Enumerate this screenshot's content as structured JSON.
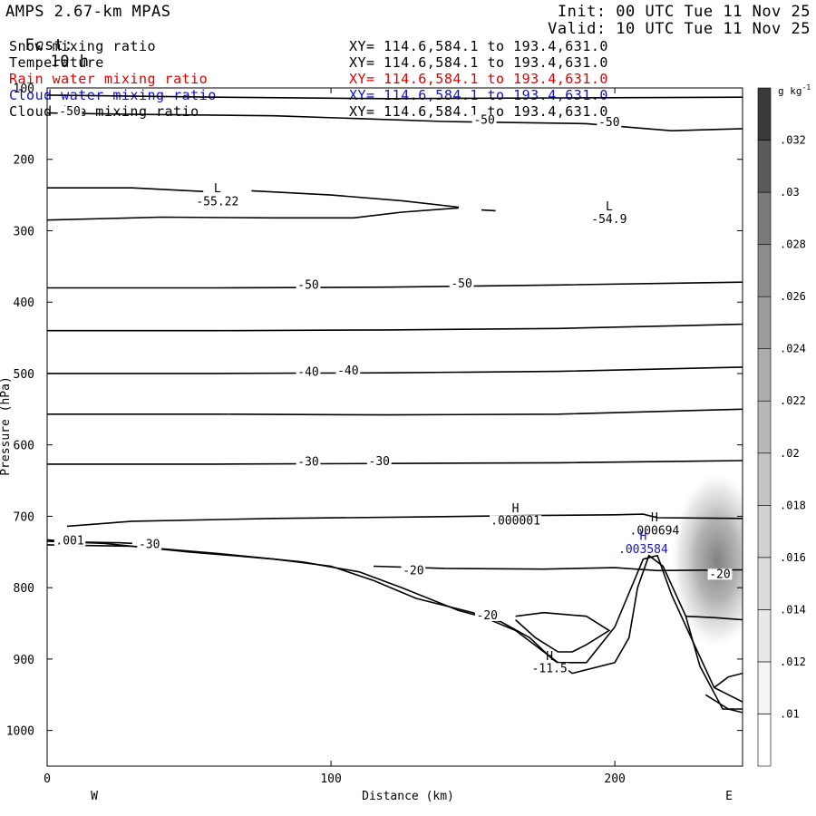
{
  "header": {
    "title": "AMPS 2.67-km MPAS",
    "forecast_label": "Fcst:",
    "forecast_value": "10 h",
    "init": "Init: 00 UTC Tue 11 Nov 25",
    "valid": "Valid: 10 UTC Tue 11 Nov 25"
  },
  "fields": [
    {
      "name": "Snow mixing ratio",
      "xy": "XY= 114.6,584.1 to 193.4,631.0",
      "color": "#000000"
    },
    {
      "name": "Temperature",
      "xy": "XY= 114.6,584.1 to 193.4,631.0",
      "color": "#000000"
    },
    {
      "name": "Rain water mixing ratio",
      "xy": "XY= 114.6,584.1 to 193.4,631.0",
      "color": "#e00000"
    },
    {
      "name": "Cloud water mixing ratio",
      "xy": "XY= 114.6,584.1 to 193.4,631.0",
      "color": "#1010d0"
    },
    {
      "name": "Cloud ice mixing ratio",
      "xy": "XY= 114.6,584.1 to 193.4,631.0",
      "color": "#000000"
    }
  ],
  "chart_data": {
    "type": "cross-section contour",
    "xlabel": "Distance (km)",
    "ylabel": "Pressure (hPa)",
    "xlim": [
      0,
      245
    ],
    "ylim": [
      1050,
      100
    ],
    "x_ticks": [
      0,
      100,
      200
    ],
    "y_ticks": [
      100,
      200,
      300,
      400,
      500,
      600,
      700,
      800,
      900,
      1000
    ],
    "x_end_labels": {
      "left": "W",
      "right": "E"
    },
    "colorbar": {
      "unit_base": "g kg",
      "unit_exp": "-1",
      "levels": [
        ".01",
        ".012",
        ".014",
        ".016",
        ".018",
        ".02",
        ".022",
        ".024",
        ".026",
        ".028",
        ".03",
        ".032"
      ],
      "shades": [
        "#ffffff",
        "#f4f4f4",
        "#e8e8e8",
        "#dcdcdc",
        "#d0d0d0",
        "#c4c4c4",
        "#b8b8b8",
        "#acacac",
        "#9c9c9c",
        "#8c8c8c",
        "#7a7a7a",
        "#5a5a5a",
        "#3a3a3a"
      ]
    },
    "contour_labels": [
      {
        "text": "-50",
        "x": 8,
        "p": 137,
        "color": "#000000"
      },
      {
        "text": "-50",
        "x": 154,
        "p": 149,
        "color": "#000000"
      },
      {
        "text": "-50",
        "x": 198,
        "p": 152,
        "color": "#000000"
      },
      {
        "text": "L",
        "x": 60,
        "p": 245,
        "color": "#000000"
      },
      {
        "text": "-55.22",
        "x": 60,
        "p": 263,
        "color": "#000000"
      },
      {
        "text": "L",
        "x": 198,
        "p": 270,
        "color": "#000000"
      },
      {
        "text": "-54.9",
        "x": 198,
        "p": 288,
        "color": "#000000"
      },
      {
        "text": "-50",
        "x": 92,
        "p": 380,
        "color": "#000000"
      },
      {
        "text": "-50",
        "x": 146,
        "p": 378,
        "color": "#000000"
      },
      {
        "text": "-40",
        "x": 92,
        "p": 502,
        "color": "#000000"
      },
      {
        "text": "-40",
        "x": 106,
        "p": 500,
        "color": "#000000"
      },
      {
        "text": "-30",
        "x": 92,
        "p": 628,
        "color": "#000000"
      },
      {
        "text": "-30",
        "x": 117,
        "p": 627,
        "color": "#000000"
      },
      {
        "text": "H",
        "x": 165,
        "p": 693,
        "color": "#000000"
      },
      {
        "text": ".000001",
        "x": 165,
        "p": 710,
        "color": "#000000"
      },
      {
        "text": "H",
        "x": 214,
        "p": 706,
        "color": "#000000"
      },
      {
        "text": ".000694",
        "x": 214,
        "p": 724,
        "color": "#000000"
      },
      {
        "text": "H",
        "x": 210,
        "p": 732,
        "color": "#1010d0"
      },
      {
        "text": ".003584",
        "x": 210,
        "p": 750,
        "color": "#1010d0"
      },
      {
        "text": ".001",
        "x": 8,
        "p": 738,
        "color": "#000000"
      },
      {
        "text": "-30",
        "x": 36,
        "p": 743,
        "color": "#000000"
      },
      {
        "text": "-20",
        "x": 129,
        "p": 780,
        "color": "#000000"
      },
      {
        "text": "-20",
        "x": 237,
        "p": 785,
        "color": "#000000"
      },
      {
        "text": "-20",
        "x": 155,
        "p": 843,
        "color": "#000000"
      },
      {
        "text": "H",
        "x": 177,
        "p": 900,
        "color": "#000000"
      },
      {
        "text": "-11.5",
        "x": 177,
        "p": 917,
        "color": "#000000"
      }
    ],
    "isotherms": [
      [
        [
          0,
          135
        ],
        [
          30,
          137
        ],
        [
          80,
          139
        ],
        [
          140,
          147
        ],
        [
          190,
          150
        ],
        [
          220,
          160
        ],
        [
          245,
          157
        ]
      ],
      [
        [
          0,
          110
        ],
        [
          60,
          113
        ],
        [
          120,
          115
        ],
        [
          180,
          114
        ],
        [
          245,
          113
        ]
      ],
      [
        [
          0,
          240
        ],
        [
          30,
          240
        ],
        [
          55,
          245
        ]
      ],
      [
        [
          72,
          244
        ],
        [
          100,
          250
        ],
        [
          125,
          258
        ],
        [
          145,
          267
        ]
      ],
      [
        [
          0,
          285
        ],
        [
          40,
          281
        ],
        [
          80,
          282
        ],
        [
          108,
          282
        ],
        [
          125,
          274
        ],
        [
          145,
          268
        ]
      ],
      [
        [
          153,
          271
        ],
        [
          158,
          272
        ]
      ],
      [
        [
          0,
          380
        ],
        [
          60,
          380
        ],
        [
          120,
          379
        ],
        [
          180,
          376
        ],
        [
          245,
          372
        ]
      ],
      [
        [
          0,
          440
        ],
        [
          60,
          440
        ],
        [
          120,
          439
        ],
        [
          180,
          437
        ],
        [
          245,
          431
        ]
      ],
      [
        [
          0,
          500
        ],
        [
          60,
          500
        ],
        [
          120,
          499
        ],
        [
          180,
          497
        ],
        [
          245,
          491
        ]
      ],
      [
        [
          0,
          557
        ],
        [
          60,
          557
        ],
        [
          120,
          558
        ],
        [
          180,
          557
        ],
        [
          245,
          550
        ]
      ],
      [
        [
          0,
          627
        ],
        [
          60,
          627
        ],
        [
          120,
          626
        ],
        [
          180,
          625
        ],
        [
          245,
          622
        ]
      ],
      [
        [
          7,
          714
        ],
        [
          30,
          707
        ],
        [
          80,
          703
        ],
        [
          130,
          701
        ],
        [
          170,
          699
        ],
        [
          200,
          698
        ],
        [
          210,
          697
        ],
        [
          215,
          702
        ],
        [
          245,
          703
        ]
      ],
      [
        [
          0,
          735
        ],
        [
          20,
          738
        ],
        [
          50,
          750
        ],
        [
          80,
          760
        ],
        [
          100,
          770
        ],
        [
          115,
          790
        ],
        [
          130,
          815
        ],
        [
          150,
          835
        ],
        [
          165,
          860
        ],
        [
          175,
          890
        ],
        [
          180,
          905
        ],
        [
          190,
          905
        ],
        [
          200,
          855
        ],
        [
          210,
          760
        ],
        [
          215,
          755
        ],
        [
          220,
          810
        ],
        [
          228,
          880
        ],
        [
          235,
          940
        ],
        [
          245,
          960
        ]
      ],
      [
        [
          0,
          740
        ],
        [
          30,
          742
        ],
        [
          60,
          752
        ],
        [
          90,
          764
        ],
        [
          110,
          778
        ],
        [
          125,
          800
        ],
        [
          145,
          832
        ],
        [
          160,
          848
        ],
        [
          170,
          870
        ],
        [
          178,
          900
        ],
        [
          185,
          920
        ],
        [
          200,
          905
        ],
        [
          205,
          870
        ],
        [
          208,
          800
        ],
        [
          212,
          755
        ],
        [
          217,
          770
        ],
        [
          225,
          840
        ],
        [
          230,
          910
        ],
        [
          238,
          970
        ],
        [
          245,
          970
        ]
      ],
      [
        [
          0,
          733
        ],
        [
          10,
          736
        ],
        [
          25,
          737
        ],
        [
          30,
          738
        ]
      ],
      [
        [
          115,
          770
        ],
        [
          140,
          773
        ],
        [
          175,
          774
        ],
        [
          200,
          772
        ],
        [
          215,
          776
        ],
        [
          245,
          775
        ]
      ],
      [
        [
          165,
          840
        ],
        [
          175,
          835
        ],
        [
          190,
          840
        ],
        [
          198,
          860
        ],
        [
          190,
          880
        ],
        [
          185,
          890
        ],
        [
          180,
          890
        ],
        [
          172,
          870
        ],
        [
          165,
          845
        ]
      ],
      [
        [
          225,
          840
        ],
        [
          235,
          842
        ],
        [
          245,
          845
        ]
      ],
      [
        [
          235,
          940
        ],
        [
          240,
          925
        ],
        [
          245,
          920
        ]
      ],
      [
        [
          232,
          950
        ],
        [
          240,
          970
        ],
        [
          245,
          975
        ]
      ]
    ],
    "shading_center": {
      "x": 236,
      "p": 762
    }
  }
}
